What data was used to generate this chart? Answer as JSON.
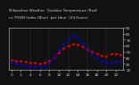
{
  "hours": [
    0,
    1,
    2,
    3,
    4,
    5,
    6,
    7,
    8,
    9,
    10,
    11,
    12,
    13,
    14,
    15,
    16,
    17,
    18,
    19,
    20,
    21,
    22,
    23
  ],
  "temp_red": [
    36,
    35,
    34,
    33,
    32,
    31,
    30,
    31,
    35,
    40,
    48,
    55,
    60,
    63,
    62,
    58,
    54,
    50,
    47,
    44,
    42,
    46,
    47,
    45
  ],
  "thsw_blue": [
    33,
    30,
    28,
    27,
    26,
    25,
    24,
    26,
    32,
    40,
    52,
    63,
    72,
    78,
    74,
    65,
    55,
    47,
    40,
    35,
    31,
    32,
    33,
    34
  ],
  "red_color": "#ff0000",
  "blue_color": "#0000ff",
  "bg_color": "#111111",
  "plot_bg_color": "#111111",
  "grid_color": "#555555",
  "text_color": "#cccccc",
  "title_text": "Milwaukee Weather  Outdoor Temperature (Red)",
  "title_text2": "vs THSW Index (Blue)  per Hour  (24 Hours)",
  "ylim_min": 20,
  "ylim_max": 90,
  "yticks": [
    20,
    30,
    40,
    50,
    60,
    70,
    80,
    90
  ],
  "xtick_step": 2,
  "tick_fontsize": 3.2,
  "title_fontsize": 3.0,
  "linewidth": 0.7,
  "markersize": 1.5
}
